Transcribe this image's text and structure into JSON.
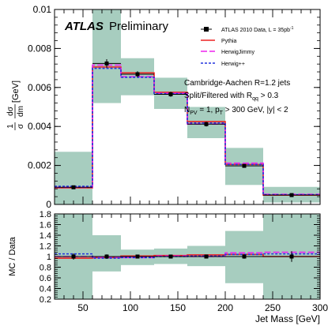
{
  "chart_data": [
    {
      "type": "histogram",
      "panel": "upper",
      "ylabel": "1/σ dσ/dm [GeV]",
      "ylabel_parts": {
        "frac1": "1",
        "frac1_den": "σ",
        "frac2_num": "dσ",
        "frac2_den": "dm",
        "unit": "[GeV]"
      },
      "xlim": [
        20,
        300
      ],
      "ylim": [
        0,
        0.01
      ],
      "yticks": [
        "0",
        "0.002",
        "0.004",
        "0.006",
        "0.008",
        "0.01"
      ],
      "bin_edges": [
        20,
        60,
        90,
        125,
        160,
        200,
        240,
        300
      ],
      "atlas_label": "ATLAS",
      "atlas_sub": "Preliminary",
      "legend": {
        "data_label": "ATLAS 2010 Data, L = 35pb",
        "data_label_sup": "-1",
        "entries": [
          "Pythia",
          "HerwigJimmy",
          "Herwig++"
        ],
        "position": "top-right"
      },
      "annotations": {
        "line1": "Cambridge-Aachen R=1.2 jets",
        "line2_pre": "Split/Filtered with R",
        "line2_sub": "qq",
        "line2_post": " > 0.3",
        "line3_a": "N",
        "line3_a_sub": "PV",
        "line3_b": " = 1, p",
        "line3_b_sub": "T",
        "line3_c": " > 300 GeV, |y| < 2"
      },
      "data": {
        "x": [
          40,
          75,
          107.5,
          142.5,
          180,
          220,
          270
        ],
        "y": [
          0.00088,
          0.00723,
          0.00668,
          0.00565,
          0.00412,
          0.00198,
          0.00048
        ],
        "yerr": [
          5e-05,
          0.00022,
          0.00015,
          0.00013,
          0.00012,
          8e-05,
          5e-05
        ],
        "syst_low": [
          0.0,
          0.0052,
          0.0056,
          0.0049,
          0.0034,
          0.001,
          0.0001
        ],
        "syst_high": [
          0.0027,
          0.0102,
          0.0075,
          0.0065,
          0.005,
          0.0029,
          0.0009
        ]
      },
      "series": [
        {
          "name": "Pythia",
          "values": [
            0.00085,
            0.00705,
            0.00675,
            0.00575,
            0.00425,
            0.00205,
            0.00048
          ],
          "color": "#ee2222",
          "dash": "solid"
        },
        {
          "name": "HerwigJimmy",
          "values": [
            0.00088,
            0.00715,
            0.00655,
            0.0057,
            0.00412,
            0.00212,
            0.00052
          ],
          "color": "#ee22ee",
          "dash": "long"
        },
        {
          "name": "Herwig++",
          "values": [
            0.00093,
            0.00698,
            0.00652,
            0.00568,
            0.00418,
            0.00205,
            0.0005
          ],
          "color": "#2233dd",
          "dash": "short"
        }
      ]
    },
    {
      "type": "histogram",
      "panel": "lower",
      "ylabel": "MC / Data",
      "xlabel": "Jet Mass [GeV]",
      "xlim": [
        20,
        300
      ],
      "ylim": [
        0.2,
        1.8
      ],
      "yticks": [
        "0.2",
        "0.4",
        "0.6",
        "0.8",
        "1",
        "1.2",
        "1.4",
        "1.6",
        "1.8"
      ],
      "xticks": [
        "40",
        "60",
        "80",
        "100",
        "120",
        "140",
        "160",
        "180",
        "200",
        "220",
        "240",
        "260",
        "280",
        "300"
      ],
      "xticks_labeled": [
        "50",
        "100",
        "150",
        "200",
        "250",
        "300"
      ],
      "bin_edges": [
        20,
        60,
        90,
        125,
        160,
        200,
        240,
        300
      ],
      "data": {
        "x": [
          40,
          75,
          107.5,
          142.5,
          180,
          220,
          270
        ],
        "y": [
          1.0,
          1.0,
          1.0,
          1.0,
          1.0,
          1.0,
          1.0
        ],
        "yerr": [
          0.06,
          0.04,
          0.03,
          0.03,
          0.03,
          0.04,
          0.1
        ],
        "syst_low": [
          0.2,
          0.72,
          0.84,
          0.86,
          0.82,
          0.5,
          0.2
        ],
        "syst_high": [
          1.8,
          1.4,
          1.13,
          1.15,
          1.2,
          1.48,
          1.8
        ]
      },
      "series": [
        {
          "name": "Pythia",
          "values": [
            0.97,
            0.98,
            1.01,
            1.02,
            1.03,
            1.04,
            1.0
          ],
          "color": "#ee2222",
          "dash": "solid"
        },
        {
          "name": "HerwigJimmy",
          "values": [
            1.0,
            0.99,
            0.98,
            1.01,
            1.0,
            1.07,
            1.08
          ],
          "color": "#ee22ee",
          "dash": "long"
        },
        {
          "name": "Herwig++",
          "values": [
            1.05,
            0.97,
            0.98,
            1.0,
            1.01,
            1.04,
            1.05
          ],
          "color": "#2233dd",
          "dash": "short"
        }
      ]
    }
  ],
  "colors": {
    "syst_band": "#a7cdbf",
    "data": "#000000"
  }
}
